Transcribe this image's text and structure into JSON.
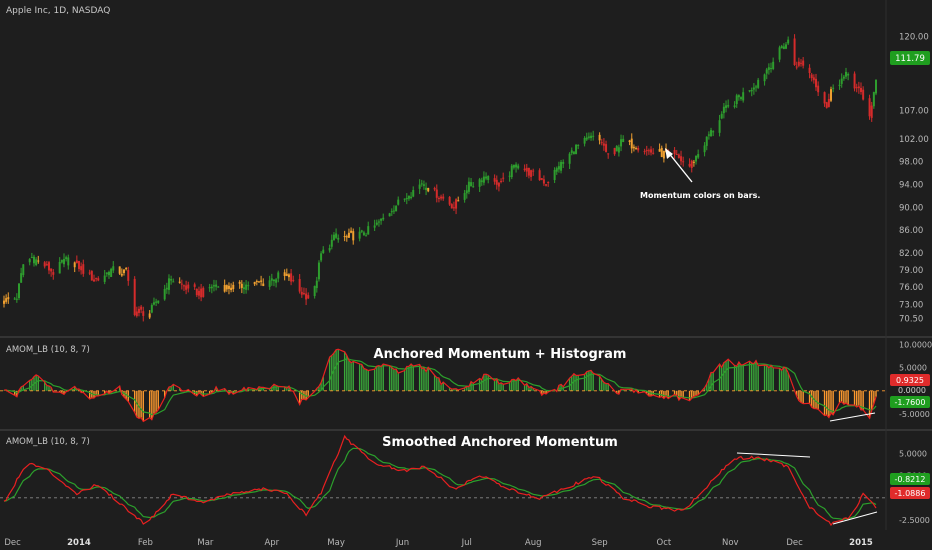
{
  "header": {
    "symbol_title": "Apple Inc, 1D, NASDAQ"
  },
  "colors": {
    "background": "#1e1e1e",
    "up": "#2e9e2e",
    "down": "#d52b2b",
    "neutral": "#f0a030",
    "momentum_line": "#e82020",
    "signal_line": "#2ca02c",
    "hist_up": "#3aa83a",
    "hist_down": "#ff9a2e",
    "axis_text": "#b8b8b8",
    "last_price_bg": "#1f9e1f",
    "neg_badge_bg": "#e02b2b"
  },
  "time_axis": {
    "labels": [
      "Dec",
      "2014",
      "Feb",
      "Mar",
      "Apr",
      "May",
      "Jun",
      "Jul",
      "Aug",
      "Sep",
      "Oct",
      "Nov",
      "Dec",
      "2015"
    ],
    "bold_labels": [
      "2014",
      "2015"
    ]
  },
  "chart_data": [
    {
      "type": "candlestick",
      "title": "Apple Inc, 1D, NASDAQ",
      "ylim": [
        68.5,
        122.5
      ],
      "y_ticks": [
        "120.00",
        "116.00",
        "111.79",
        "107.00",
        "102.00",
        "98.00",
        "94.00",
        "90.00",
        "86.00",
        "82.00",
        "79.00",
        "76.00",
        "73.00",
        "70.50"
      ],
      "last_price": "111.79",
      "close_anchors": [
        [
          "Nov 27",
          73.6
        ],
        [
          "Dec 3",
          74.2
        ],
        [
          "Dec 6",
          80.0
        ],
        [
          "Dec 10",
          81.2
        ],
        [
          "Dec 16",
          79.8
        ],
        [
          "Dec 20",
          78.6
        ],
        [
          "Dec 26",
          80.7
        ],
        [
          "Dec 31",
          80.0
        ],
        [
          "Jan 6",
          77.8
        ],
        [
          "Jan 10",
          77.4
        ],
        [
          "Jan 16",
          79.0
        ],
        [
          "Jan 23",
          78.6
        ],
        [
          "Jan 27",
          71.8
        ],
        [
          "Feb 3",
          71.5
        ],
        [
          "Feb 7",
          73.9
        ],
        [
          "Feb 13",
          77.5
        ],
        [
          "Feb 20",
          75.9
        ],
        [
          "Feb 27",
          74.9
        ],
        [
          "Mar 5",
          76.2
        ],
        [
          "Mar 14",
          75.9
        ],
        [
          "Mar 21",
          76.5
        ],
        [
          "Mar 28",
          76.8
        ],
        [
          "Apr 4",
          77.9
        ],
        [
          "Apr 9",
          77.7
        ],
        [
          "Apr 14",
          75.3
        ],
        [
          "Apr 17",
          74.6
        ],
        [
          "Apr 21",
          75.6
        ],
        [
          "Apr 24",
          81.7
        ],
        [
          "Apr 30",
          84.5
        ],
        [
          "May 7",
          84.8
        ],
        [
          "May 14",
          85.4
        ],
        [
          "May 21",
          87.2
        ],
        [
          "May 28",
          90.1
        ],
        [
          "Jun 4",
          92.3
        ],
        [
          "Jun 10",
          94.3
        ],
        [
          "Jun 18",
          92.1
        ],
        [
          "Jun 25",
          90.2
        ],
        [
          "Jul 1",
          93.5
        ],
        [
          "Jul 10",
          95.6
        ],
        [
          "Jul 17",
          94.0
        ],
        [
          "Jul 24",
          97.6
        ],
        [
          "Jul 30",
          96.2
        ],
        [
          "Aug 7",
          94.4
        ],
        [
          "Aug 14",
          97.5
        ],
        [
          "Aug 21",
          100.5
        ],
        [
          "Aug 28",
          102.2
        ],
        [
          "Sep 2",
          101.5
        ],
        [
          "Sep 5",
          98.8
        ],
        [
          "Sep 11",
          101.3
        ],
        [
          "Sep 18",
          100.9
        ],
        [
          "Sep 24",
          99.8
        ],
        [
          "Oct 1",
          99.4
        ],
        [
          "Oct 7",
          98.8
        ],
        [
          "Oct 13",
          97.2
        ],
        [
          "Oct 17",
          99.5
        ],
        [
          "Oct 22",
          102.5
        ],
        [
          "Oct 29",
          106.9
        ],
        [
          "Nov 5",
          109.2
        ],
        [
          "Nov 12",
          111.4
        ],
        [
          "Nov 19",
          114.7
        ],
        [
          "Nov 25",
          117.8
        ],
        [
          "Nov 28",
          119.1
        ],
        [
          "Dec 1",
          115.1
        ],
        [
          "Dec 5",
          115.2
        ],
        [
          "Dec 10",
          112.4
        ],
        [
          "Dec 16",
          107.8
        ],
        [
          "Dec 19",
          111.5
        ],
        [
          "Dec 26",
          113.2
        ],
        [
          "Dec 31",
          110.4
        ],
        [
          "Jan 5",
          106.3
        ],
        [
          "Jan 8",
          111.8
        ]
      ],
      "annotation": "Momentum colors on bars."
    },
    {
      "type": "line+histogram",
      "title": "Anchored Momentum + Histogram",
      "indicator_label": "AMOM_LB (10, 8, 7)",
      "ylim": [
        -8.0,
        10.5
      ],
      "y_ticks": [
        "10.0000",
        "5.0000",
        "0.0000",
        "-5.0000"
      ],
      "value_badges": [
        "0.9325",
        "0.0000",
        "-1.7600"
      ],
      "momentum_anchors": [
        [
          "Nov 27",
          0.0
        ],
        [
          "Dec 3",
          -1.0
        ],
        [
          "Dec 8",
          2.5
        ],
        [
          "Dec 12",
          3.5
        ],
        [
          "Dec 18",
          0.5
        ],
        [
          "Dec 24",
          -0.8
        ],
        [
          "Dec 31",
          0.8
        ],
        [
          "Jan 6",
          -1.8
        ],
        [
          "Jan 13",
          -0.5
        ],
        [
          "Jan 20",
          0.5
        ],
        [
          "Jan 27",
          -5.0
        ],
        [
          "Feb 2",
          -6.5
        ],
        [
          "Feb 7",
          -4.5
        ],
        [
          "Feb 13",
          1.5
        ],
        [
          "Feb 20",
          0.2
        ],
        [
          "Feb 27",
          -1.0
        ],
        [
          "Mar 6",
          0.4
        ],
        [
          "Mar 14",
          -0.6
        ],
        [
          "Mar 21",
          0.6
        ],
        [
          "Mar 28",
          0.2
        ],
        [
          "Apr 4",
          1.5
        ],
        [
          "Apr 10",
          0.5
        ],
        [
          "Apr 14",
          -2.5
        ],
        [
          "Apr 18",
          -1.5
        ],
        [
          "Apr 23",
          0.5
        ],
        [
          "Apr 28",
          7.0
        ],
        [
          "May 2",
          9.5
        ],
        [
          "May 9",
          6.0
        ],
        [
          "May 16",
          4.5
        ],
        [
          "May 23",
          5.5
        ],
        [
          "May 30",
          4.0
        ],
        [
          "Jun 6",
          5.5
        ],
        [
          "Jun 13",
          4.5
        ],
        [
          "Jun 20",
          1.5
        ],
        [
          "Jun 27",
          0.0
        ],
        [
          "Jul 3",
          1.5
        ],
        [
          "Jul 10",
          3.5
        ],
        [
          "Jul 17",
          1.5
        ],
        [
          "Jul 24",
          2.5
        ],
        [
          "Jul 31",
          1.0
        ],
        [
          "Aug 7",
          -1.0
        ],
        [
          "Aug 14",
          1.0
        ],
        [
          "Aug 21",
          3.5
        ],
        [
          "Aug 28",
          4.0
        ],
        [
          "Sep 3",
          2.0
        ],
        [
          "Sep 9",
          -0.5
        ],
        [
          "Sep 15",
          0.5
        ],
        [
          "Sep 22",
          -0.5
        ],
        [
          "Sep 29",
          -1.5
        ],
        [
          "Oct 6",
          -1.0
        ],
        [
          "Oct 13",
          -2.5
        ],
        [
          "Oct 17",
          -1.0
        ],
        [
          "Oct 23",
          3.5
        ],
        [
          "Oct 30",
          6.5
        ],
        [
          "Nov 6",
          5.5
        ],
        [
          "Nov 13",
          6.0
        ],
        [
          "Nov 20",
          5.0
        ],
        [
          "Nov 27",
          4.5
        ],
        [
          "Dec 2",
          -1.5
        ],
        [
          "Dec 8",
          -3.0
        ],
        [
          "Dec 12",
          -4.5
        ],
        [
          "Dec 17",
          -6.0
        ],
        [
          "Dec 23",
          -2.5
        ],
        [
          "Dec 30",
          -3.0
        ],
        [
          "Jan 5",
          -5.5
        ],
        [
          "Jan 8",
          -1.0
        ]
      ]
    },
    {
      "type": "line",
      "title": "Smoothed Anchored Momentum",
      "indicator_label": "AMOM_LB (10, 8, 7)",
      "ylim": [
        -3.4,
        7.3
      ],
      "y_ticks": [
        "5.0000",
        "2.5000",
        "-2.5000"
      ],
      "value_badges": [
        "-0.8212",
        "-1.0886"
      ],
      "smoothed_anchors": [
        [
          "Nov 27",
          -0.5
        ],
        [
          "Dec 8",
          4.0
        ],
        [
          "Dec 18",
          3.0
        ],
        [
          "Dec 31",
          0.5
        ],
        [
          "Jan 10",
          1.5
        ],
        [
          "Jan 22",
          -1.0
        ],
        [
          "Feb 1",
          -3.0
        ],
        [
          "Feb 14",
          0.5
        ],
        [
          "Feb 27",
          -0.5
        ],
        [
          "Mar 14",
          0.5
        ],
        [
          "Mar 28",
          1.0
        ],
        [
          "Apr 8",
          0.5
        ],
        [
          "Apr 17",
          -2.0
        ],
        [
          "Apr 25",
          1.0
        ],
        [
          "May 5",
          6.8
        ],
        [
          "May 18",
          4.0
        ],
        [
          "Jun 1",
          3.0
        ],
        [
          "Jun 12",
          3.5
        ],
        [
          "Jun 25",
          1.0
        ],
        [
          "Jul 8",
          2.5
        ],
        [
          "Jul 20",
          1.0
        ],
        [
          "Aug 4",
          0.0
        ],
        [
          "Aug 20",
          1.5
        ],
        [
          "Aug 30",
          2.5
        ],
        [
          "Sep 12",
          0.0
        ],
        [
          "Sep 25",
          -1.0
        ],
        [
          "Oct 10",
          -1.5
        ],
        [
          "Oct 20",
          1.0
        ],
        [
          "Nov 3",
          4.5
        ],
        [
          "Nov 15",
          4.5
        ],
        [
          "Nov 28",
          3.5
        ],
        [
          "Dec 8",
          -1.0
        ],
        [
          "Dec 18",
          -3.0
        ],
        [
          "Dec 28",
          -2.0
        ],
        [
          "Jan 2",
          0.5
        ],
        [
          "Jan 8",
          -1.0
        ]
      ]
    }
  ]
}
